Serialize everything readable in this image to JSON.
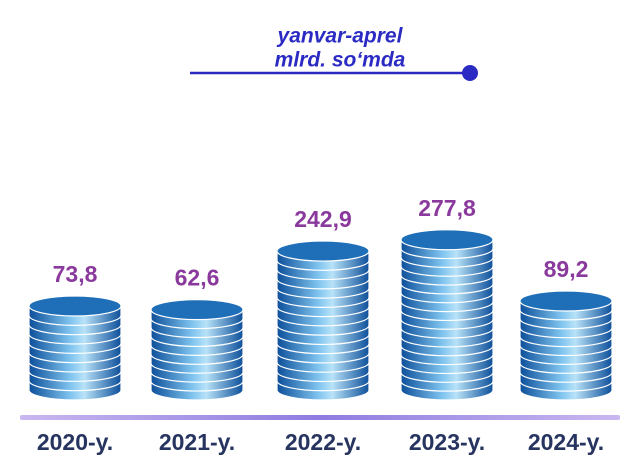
{
  "chart_data": {
    "type": "bar",
    "subtitle": [
      "yanvar-aprel",
      "mlrd. so‘mda"
    ],
    "categories": [
      "2020-y.",
      "2021-y.",
      "2022-y.",
      "2023-y.",
      "2024-y."
    ],
    "values": [
      73.8,
      62.6,
      242.9,
      277.8,
      89.2
    ],
    "value_labels": [
      "73,8",
      "62,6",
      "242,9",
      "277,8",
      "89,2"
    ],
    "color": "#1f6fb8"
  }
}
